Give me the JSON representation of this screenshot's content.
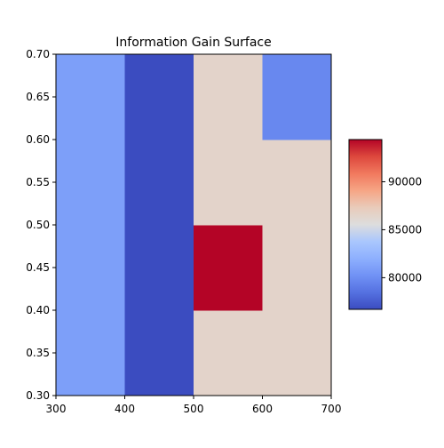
{
  "chart_data": {
    "type": "heatmap",
    "title": "Information Gain Surface",
    "xlabel": "",
    "ylabel": "",
    "x_edges": [
      300,
      400,
      500,
      600,
      700
    ],
    "y_edges": [
      0.3,
      0.4,
      0.5,
      0.6,
      0.7
    ],
    "xlim": [
      300,
      700
    ],
    "ylim": [
      0.3,
      0.7
    ],
    "x_ticks": [
      300,
      400,
      500,
      600,
      700
    ],
    "x_tick_labels": [
      "300",
      "400",
      "500",
      "600",
      "700"
    ],
    "y_ticks": [
      0.3,
      0.35,
      0.4,
      0.45,
      0.5,
      0.55,
      0.6,
      0.65,
      0.7
    ],
    "y_tick_labels": [
      "0.30",
      "0.35",
      "0.40",
      "0.45",
      "0.50",
      "0.55",
      "0.60",
      "0.65",
      "0.70"
    ],
    "values": [
      [
        81000,
        76700,
        86500,
        86500
      ],
      [
        81000,
        76700,
        94400,
        86500
      ],
      [
        81000,
        76700,
        86500,
        86500
      ],
      [
        81000,
        76700,
        86500,
        79700
      ]
    ],
    "colormap": "coolwarm",
    "vmin": 76700,
    "vmax": 94400,
    "colorbar_ticks": [
      80000,
      85000,
      90000
    ],
    "colorbar_tick_labels": [
      "80000",
      "85000",
      "90000"
    ],
    "grid": false
  }
}
